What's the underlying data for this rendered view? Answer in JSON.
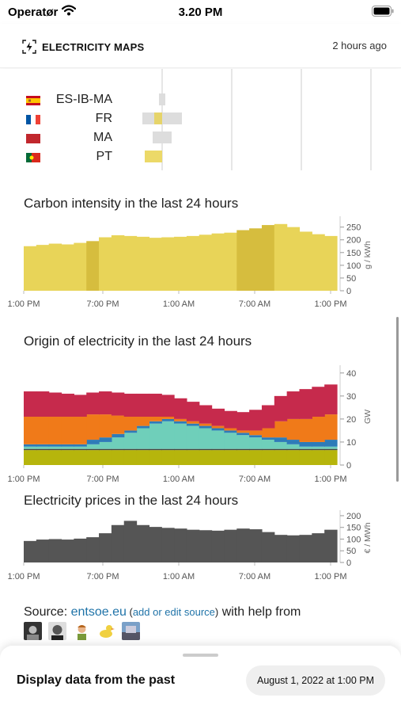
{
  "status_bar": {
    "carrier": "Operatør",
    "time": "3.20 PM"
  },
  "header": {
    "brand": "ELECTRICITY MAPS",
    "updated": "2 hours ago"
  },
  "exchanges": [
    {
      "zone": "ES-IB-MA",
      "flag": "spain-flag-icon"
    },
    {
      "zone": "FR",
      "flag": "france-flag-icon"
    },
    {
      "zone": "MA",
      "flag": "morocco-flag-icon"
    },
    {
      "zone": "PT",
      "flag": "portugal-flag-icon"
    }
  ],
  "time_ticks": [
    "1:00 PM",
    "7:00 PM",
    "1:00 AM",
    "7:00 AM",
    "1:00 PM"
  ],
  "carbon_chart": {
    "title": "Carbon intensity in the last 24 hours",
    "y_unit": "g / kWh",
    "y_ticks": [
      "0",
      "50",
      "100",
      "150",
      "200",
      "250"
    ]
  },
  "origin_chart": {
    "title": "Origin of electricity in the last 24 hours",
    "y_unit": "GW",
    "y_ticks": [
      "0",
      "10",
      "20",
      "30",
      "40"
    ]
  },
  "price_chart": {
    "title": "Electricity prices in the last 24 hours",
    "y_unit": "€ / MWh",
    "y_ticks": [
      "0",
      "50",
      "100",
      "150",
      "200"
    ]
  },
  "source": {
    "prefix": "Source: ",
    "link": "entsoe.eu",
    "paren_open": " (",
    "edit_link": "add or edit source",
    "paren_close": ")",
    "suffix": " with help from"
  },
  "bottom_sheet": {
    "title": "Display data from the past",
    "date": "August 1, 2022 at 1:00 PM"
  },
  "chart_data": [
    {
      "type": "area",
      "title": "Carbon intensity in the last 24 hours",
      "ylabel": "g / kWh",
      "ylim": [
        0,
        280
      ],
      "y_ticks": [
        0,
        50,
        100,
        150,
        200,
        250
      ],
      "x_ticks": [
        "1:00 PM",
        "7:00 PM",
        "1:00 AM",
        "7:00 AM",
        "1:00 PM"
      ],
      "x_hours": [
        0,
        1,
        2,
        3,
        4,
        5,
        6,
        7,
        8,
        9,
        10,
        11,
        12,
        13,
        14,
        15,
        16,
        17,
        18,
        19,
        20,
        21,
        22,
        23,
        24
      ],
      "values": [
        175,
        180,
        185,
        182,
        188,
        195,
        210,
        218,
        215,
        212,
        208,
        210,
        212,
        215,
        220,
        225,
        228,
        238,
        245,
        258,
        262,
        250,
        232,
        222,
        215
      ],
      "colors": [
        "#e8d458",
        "#d6bd3e"
      ]
    },
    {
      "type": "area",
      "title": "Origin of electricity in the last 24 hours",
      "ylabel": "GW",
      "ylim": [
        0,
        42
      ],
      "y_ticks": [
        0,
        10,
        20,
        30,
        40
      ],
      "x_ticks": [
        "1:00 PM",
        "7:00 PM",
        "1:00 AM",
        "7:00 AM",
        "1:00 PM"
      ],
      "x_hours": [
        0,
        1,
        2,
        3,
        4,
        5,
        6,
        7,
        8,
        9,
        10,
        11,
        12,
        13,
        14,
        15,
        16,
        17,
        18,
        19,
        20,
        21,
        22,
        23,
        24
      ],
      "series": [
        {
          "color": "#b6b50c",
          "values": [
            6.5,
            6.5,
            6.5,
            6.5,
            6.5,
            6.5,
            6.5,
            6.5,
            6.5,
            6.5,
            6.5,
            6.5,
            6.5,
            6.5,
            6.5,
            6.5,
            6.5,
            6.5,
            6.5,
            6.5,
            6.5,
            6.5,
            6.5,
            6.5,
            6.5
          ]
        },
        {
          "color": "#444444",
          "values": [
            0.5,
            0.5,
            0.5,
            0.5,
            0.5,
            0.5,
            0.5,
            0.5,
            0.5,
            0.5,
            0.5,
            0.5,
            0.5,
            0.5,
            0.5,
            0.5,
            0.5,
            0.5,
            0.5,
            0.5,
            0.5,
            0.5,
            0.5,
            0.5,
            0.5
          ]
        },
        {
          "color": "#6fcfba",
          "values": [
            1,
            1,
            1,
            1,
            1,
            2,
            3,
            5,
            7,
            9,
            11,
            12,
            11,
            10,
            9,
            8,
            7,
            6,
            5,
            4,
            3,
            2,
            1,
            1,
            1
          ]
        },
        {
          "color": "#2e7bb8",
          "values": [
            1,
            1,
            1,
            1,
            1,
            2,
            2,
            1.5,
            1,
            1,
            1,
            1,
            1,
            1,
            1,
            1,
            1,
            1,
            1,
            1,
            2,
            2,
            2,
            2,
            3
          ]
        },
        {
          "color": "#f07a19",
          "values": [
            12,
            12,
            12,
            12,
            12,
            11,
            10,
            8,
            6,
            4,
            2,
            1,
            1,
            1,
            1,
            1,
            1,
            1,
            2,
            4,
            7,
            9,
            10,
            11,
            11
          ]
        },
        {
          "color": "#c62a4c",
          "values": [
            11,
            11,
            10.5,
            10,
            9.5,
            9.5,
            10,
            10,
            10,
            10,
            10,
            9.5,
            9,
            8.5,
            8,
            7.5,
            7.5,
            8,
            9,
            10,
            11,
            12,
            13,
            13,
            13
          ]
        }
      ]
    },
    {
      "type": "area",
      "title": "Electricity prices in the last 24 hours",
      "ylabel": "€ / MWh",
      "ylim": [
        0,
        210
      ],
      "y_ticks": [
        0,
        50,
        100,
        150,
        200
      ],
      "x_ticks": [
        "1:00 PM",
        "7:00 PM",
        "1:00 AM",
        "7:00 AM",
        "1:00 PM"
      ],
      "x_hours": [
        0,
        1,
        2,
        3,
        4,
        5,
        6,
        7,
        8,
        9,
        10,
        11,
        12,
        13,
        14,
        15,
        16,
        17,
        18,
        19,
        20,
        21,
        22,
        23,
        24
      ],
      "values": [
        92,
        98,
        100,
        98,
        102,
        108,
        125,
        160,
        178,
        160,
        152,
        148,
        145,
        140,
        138,
        136,
        140,
        145,
        142,
        130,
        118,
        116,
        118,
        125,
        140
      ],
      "colors": [
        "#555555"
      ]
    }
  ]
}
